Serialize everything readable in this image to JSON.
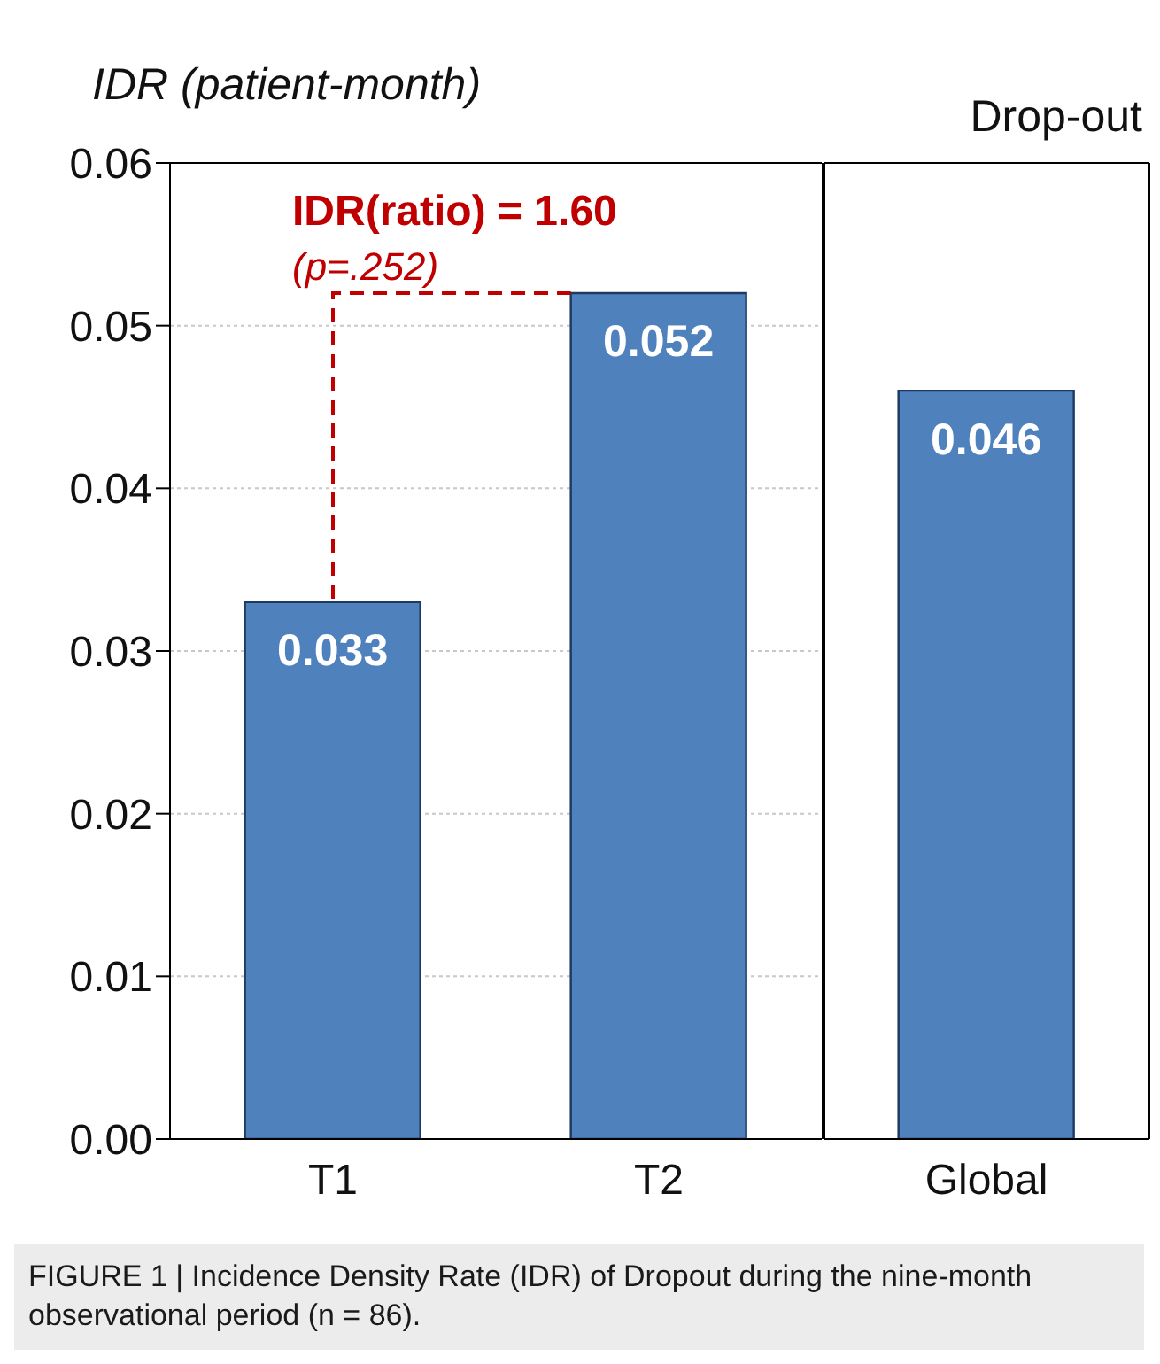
{
  "chart_data": [
    {
      "type": "bar",
      "ylabel": "IDR (patient-month)",
      "categories": [
        "T1",
        "T2"
      ],
      "values": [
        0.033,
        0.052
      ],
      "color": "#4f81bd",
      "ylim": [
        0,
        0.06
      ],
      "yticks": [
        {
          "value": 0,
          "label": "0.00"
        },
        {
          "value": 0.01,
          "label": "0.01"
        },
        {
          "value": 0.02,
          "label": "0.02"
        },
        {
          "value": 0.03,
          "label": "0.03"
        },
        {
          "value": 0.04,
          "label": "0.04"
        },
        {
          "value": 0.05,
          "label": "0.05"
        },
        {
          "value": 0.06,
          "label": "0.06"
        }
      ],
      "grid": "y",
      "data_labels": true,
      "annotations": [
        "IDR(ratio) = 1.60",
        "(p=.252)",
        "FIGURE 1 | Incidence Density Rate (IDR) of Dropout during the nine-month observational period (n = 86)."
      ]
    },
    {
      "type": "bar",
      "title": "Drop-out",
      "categories": [
        "Global"
      ],
      "values": [
        0.046
      ],
      "color": "#4f81bd",
      "ylim": [
        0,
        0.06
      ],
      "yticks": [
        {
          "value": 0,
          "label": null
        },
        {
          "value": 0.01,
          "label": null
        },
        {
          "value": 0.02,
          "label": null
        },
        {
          "value": 0.03,
          "label": null
        },
        {
          "value": 0.04,
          "label": null
        },
        {
          "value": 0.05,
          "label": null
        },
        {
          "value": 0.06,
          "label": null
        }
      ],
      "grid": "y",
      "data_labels": true,
      "tick_labels": "x"
    }
  ]
}
